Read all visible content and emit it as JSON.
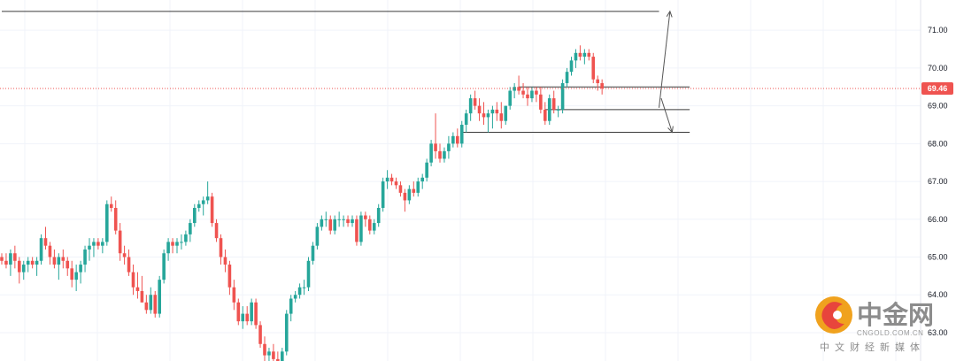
{
  "chart_data": {
    "type": "candlestick",
    "y_ticks": [
      "71.00",
      "70.00",
      "69.00",
      "68.00",
      "67.00",
      "66.00",
      "65.00",
      "64.00",
      "63.00"
    ],
    "ylim": [
      62.25,
      71.8
    ],
    "current_price": 69.46,
    "current_price_label": "69.46",
    "colors": {
      "up": "#26a69a",
      "down": "#ef5350",
      "price_tag": "#ef5350",
      "grid": "#f0f3fa"
    },
    "candles": [
      [
        65.0,
        65.1,
        64.8,
        64.9
      ],
      [
        64.9,
        65.1,
        64.7,
        64.8
      ],
      [
        64.8,
        65.2,
        64.5,
        65.1
      ],
      [
        65.1,
        65.3,
        64.7,
        64.9
      ],
      [
        64.9,
        65.0,
        64.3,
        64.6
      ],
      [
        64.6,
        64.9,
        64.4,
        64.8
      ],
      [
        64.8,
        65.0,
        64.6,
        64.9
      ],
      [
        64.9,
        65.0,
        64.7,
        64.8
      ],
      [
        64.8,
        65.0,
        64.5,
        64.9
      ],
      [
        64.9,
        65.6,
        64.8,
        65.5
      ],
      [
        65.5,
        65.8,
        65.2,
        65.3
      ],
      [
        65.3,
        65.4,
        64.8,
        65.0
      ],
      [
        65.0,
        65.2,
        64.7,
        64.8
      ],
      [
        64.8,
        65.1,
        64.4,
        65.0
      ],
      [
        65.0,
        65.2,
        64.7,
        64.9
      ],
      [
        64.9,
        65.0,
        64.5,
        64.7
      ],
      [
        64.7,
        64.9,
        64.2,
        64.4
      ],
      [
        64.4,
        64.8,
        64.1,
        64.6
      ],
      [
        64.6,
        64.9,
        64.3,
        64.8
      ],
      [
        64.8,
        65.3,
        64.6,
        65.2
      ],
      [
        65.2,
        65.5,
        64.9,
        65.3
      ],
      [
        65.3,
        65.5,
        65.0,
        65.4
      ],
      [
        65.4,
        65.5,
        65.2,
        65.3
      ],
      [
        65.3,
        65.5,
        65.1,
        65.4
      ],
      [
        65.4,
        66.5,
        65.3,
        66.4
      ],
      [
        66.4,
        66.6,
        66.2,
        66.3
      ],
      [
        66.3,
        66.5,
        65.6,
        65.7
      ],
      [
        65.7,
        65.9,
        64.9,
        65.1
      ],
      [
        65.1,
        65.3,
        64.8,
        65.0
      ],
      [
        65.0,
        65.2,
        64.5,
        64.6
      ],
      [
        64.6,
        64.8,
        64.0,
        64.2
      ],
      [
        64.2,
        64.6,
        63.9,
        64.1
      ],
      [
        64.1,
        64.5,
        63.8,
        63.8
      ],
      [
        63.8,
        64.0,
        63.5,
        63.6
      ],
      [
        63.6,
        64.2,
        63.5,
        64.0
      ],
      [
        64.0,
        64.1,
        63.4,
        63.5
      ],
      [
        63.5,
        64.5,
        63.4,
        64.4
      ],
      [
        64.4,
        65.2,
        64.3,
        65.1
      ],
      [
        65.1,
        65.5,
        64.9,
        65.4
      ],
      [
        65.4,
        65.5,
        65.1,
        65.3
      ],
      [
        65.3,
        65.5,
        65.1,
        65.4
      ],
      [
        65.4,
        65.6,
        65.2,
        65.4
      ],
      [
        65.4,
        65.7,
        65.3,
        65.6
      ],
      [
        65.6,
        66.0,
        65.4,
        65.9
      ],
      [
        65.9,
        66.4,
        65.8,
        66.3
      ],
      [
        66.3,
        66.5,
        66.2,
        66.4
      ],
      [
        66.4,
        66.6,
        66.1,
        66.5
      ],
      [
        66.5,
        67.0,
        66.4,
        66.6
      ],
      [
        66.6,
        66.7,
        65.8,
        65.9
      ],
      [
        65.9,
        66.0,
        65.4,
        65.5
      ],
      [
        65.5,
        65.6,
        64.8,
        65.0
      ],
      [
        65.0,
        65.2,
        64.6,
        64.8
      ],
      [
        64.8,
        64.9,
        64.0,
        64.2
      ],
      [
        64.2,
        64.4,
        63.6,
        63.8
      ],
      [
        63.8,
        63.9,
        63.2,
        63.3
      ],
      [
        63.3,
        63.7,
        63.1,
        63.5
      ],
      [
        63.5,
        63.7,
        63.2,
        63.3
      ],
      [
        63.3,
        63.9,
        63.2,
        63.8
      ],
      [
        63.8,
        63.9,
        63.1,
        63.2
      ],
      [
        63.2,
        63.3,
        62.6,
        62.7
      ],
      [
        62.7,
        62.9,
        62.2,
        62.4
      ],
      [
        62.4,
        62.6,
        62.1,
        62.5
      ],
      [
        62.5,
        62.7,
        62.1,
        62.3
      ],
      [
        62.3,
        62.5,
        62.0,
        62.2
      ],
      [
        62.2,
        62.6,
        62.1,
        62.5
      ],
      [
        62.5,
        63.6,
        62.4,
        63.5
      ],
      [
        63.5,
        64.0,
        63.3,
        63.9
      ],
      [
        63.9,
        64.1,
        63.8,
        64.0
      ],
      [
        64.0,
        64.3,
        63.9,
        64.2
      ],
      [
        64.2,
        64.4,
        64.0,
        64.2
      ],
      [
        64.2,
        65.0,
        64.1,
        64.9
      ],
      [
        64.9,
        65.4,
        64.8,
        65.3
      ],
      [
        65.3,
        65.9,
        65.2,
        65.8
      ],
      [
        65.8,
        66.1,
        65.7,
        66.0
      ],
      [
        66.0,
        66.2,
        65.8,
        66.0
      ],
      [
        66.0,
        66.1,
        65.6,
        65.7
      ],
      [
        65.7,
        66.1,
        65.6,
        66.0
      ],
      [
        66.0,
        66.2,
        65.8,
        66.0
      ],
      [
        66.0,
        66.1,
        65.8,
        66.0
      ],
      [
        66.0,
        66.1,
        65.8,
        65.9
      ],
      [
        65.9,
        66.1,
        65.8,
        66.0
      ],
      [
        66.0,
        66.1,
        65.3,
        65.4
      ],
      [
        65.4,
        66.2,
        65.3,
        66.1
      ],
      [
        66.1,
        66.2,
        65.8,
        66.0
      ],
      [
        66.0,
        66.1,
        65.6,
        65.7
      ],
      [
        65.7,
        66.0,
        65.6,
        65.9
      ],
      [
        65.9,
        66.4,
        65.8,
        66.3
      ],
      [
        66.3,
        67.1,
        66.2,
        67.0
      ],
      [
        67.0,
        67.3,
        66.8,
        67.1
      ],
      [
        67.1,
        67.2,
        66.9,
        67.0
      ],
      [
        67.0,
        67.1,
        66.8,
        66.9
      ],
      [
        66.9,
        67.0,
        66.6,
        66.7
      ],
      [
        66.7,
        66.8,
        66.2,
        66.5
      ],
      [
        66.5,
        66.9,
        66.4,
        66.8
      ],
      [
        66.8,
        67.0,
        66.6,
        66.7
      ],
      [
        66.7,
        67.1,
        66.6,
        67.0
      ],
      [
        67.0,
        67.2,
        66.8,
        67.1
      ],
      [
        67.1,
        67.6,
        67.0,
        67.5
      ],
      [
        67.5,
        68.1,
        67.4,
        68.0
      ],
      [
        68.0,
        68.8,
        67.6,
        67.8
      ],
      [
        67.8,
        68.0,
        67.5,
        67.6
      ],
      [
        67.6,
        67.9,
        67.5,
        67.8
      ],
      [
        67.8,
        68.2,
        67.6,
        68.0
      ],
      [
        68.0,
        68.3,
        67.9,
        68.2
      ],
      [
        68.2,
        68.4,
        67.9,
        68.0
      ],
      [
        68.0,
        68.6,
        67.9,
        68.5
      ],
      [
        68.5,
        68.9,
        68.3,
        68.8
      ],
      [
        68.8,
        69.3,
        68.6,
        69.2
      ],
      [
        69.2,
        69.4,
        68.9,
        69.0
      ],
      [
        69.0,
        69.2,
        68.6,
        68.8
      ],
      [
        68.8,
        69.1,
        68.5,
        68.7
      ],
      [
        68.7,
        68.9,
        68.3,
        68.8
      ],
      [
        68.8,
        69.0,
        68.4,
        68.9
      ],
      [
        68.9,
        69.1,
        68.6,
        68.8
      ],
      [
        68.8,
        69.1,
        68.4,
        68.6
      ],
      [
        68.6,
        69.0,
        68.5,
        69.0
      ],
      [
        69.0,
        69.5,
        68.9,
        69.4
      ],
      [
        69.4,
        69.6,
        69.2,
        69.5
      ],
      [
        69.5,
        69.8,
        69.3,
        69.4
      ],
      [
        69.4,
        69.6,
        69.2,
        69.3
      ],
      [
        69.3,
        69.5,
        69.0,
        69.2
      ],
      [
        69.2,
        69.5,
        69.1,
        69.4
      ],
      [
        69.4,
        69.5,
        69.1,
        69.3
      ],
      [
        69.3,
        69.5,
        68.8,
        68.9
      ],
      [
        68.9,
        69.1,
        68.5,
        68.6
      ],
      [
        68.6,
        69.3,
        68.5,
        69.2
      ],
      [
        69.2,
        69.4,
        68.8,
        68.9
      ],
      [
        68.9,
        69.0,
        68.7,
        68.9
      ],
      [
        68.9,
        69.7,
        68.8,
        69.6
      ],
      [
        69.6,
        70.0,
        69.5,
        69.9
      ],
      [
        69.9,
        70.3,
        69.8,
        70.2
      ],
      [
        70.2,
        70.5,
        70.0,
        70.4
      ],
      [
        70.4,
        70.6,
        70.2,
        70.3
      ],
      [
        70.3,
        70.5,
        70.1,
        70.4
      ],
      [
        70.4,
        70.5,
        70.2,
        70.3
      ],
      [
        70.3,
        70.4,
        69.6,
        69.7
      ],
      [
        69.7,
        69.8,
        69.4,
        69.6
      ],
      [
        69.6,
        69.7,
        69.3,
        69.46
      ]
    ],
    "annotations": [
      {
        "type": "hline",
        "price": 71.5,
        "x_from_bar": 0,
        "x_to_bar": 150
      },
      {
        "type": "hline",
        "price": 69.5,
        "x_from_bar": 118,
        "x_to_bar": 157
      },
      {
        "type": "hline",
        "price": 68.9,
        "x_from_bar": 124,
        "x_to_bar": 157
      },
      {
        "type": "hline",
        "price": 68.3,
        "x_from_bar": 105,
        "x_to_bar": 157
      },
      {
        "type": "arrow",
        "from": [
          150,
          68.95
        ],
        "to": [
          152.5,
          71.5
        ]
      },
      {
        "type": "arrow",
        "from": [
          150.5,
          69.2
        ],
        "to": [
          153,
          68.3
        ]
      }
    ]
  },
  "watermark": {
    "chinese_name": "中金网",
    "english_url": "CNGOLD.COM.CN",
    "subtitle": "中文财经新媒体",
    "logo_colors": [
      "#f0a21e",
      "#e8453c"
    ]
  }
}
